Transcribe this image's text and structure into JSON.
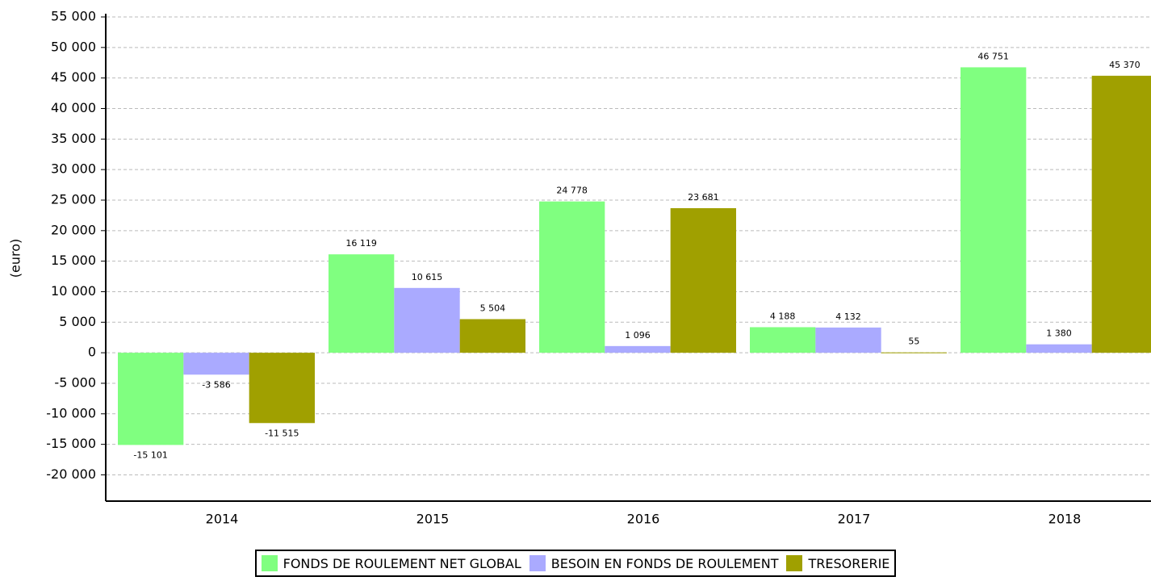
{
  "chart_data": {
    "type": "bar",
    "y_axis_label": "(euro)",
    "categories": [
      "2014",
      "2015",
      "2016",
      "2017",
      "2018"
    ],
    "series": [
      {
        "name": "FONDS DE ROULEMENT NET GLOBAL",
        "color": "#80ff80",
        "values": [
          -15101,
          16119,
          24778,
          4188,
          46751
        ],
        "value_labels": [
          "-15 101",
          "16 119",
          "24 778",
          "4 188",
          "46 751"
        ]
      },
      {
        "name": "BESOIN EN FONDS DE ROULEMENT",
        "color": "#aaaaff",
        "values": [
          -3586,
          10615,
          1096,
          4132,
          1380
        ],
        "value_labels": [
          "-3 586",
          "10 615",
          "1 096",
          "4 132",
          "1 380"
        ]
      },
      {
        "name": "TRESORERIE",
        "color": "#a0a000",
        "values": [
          -11515,
          5504,
          23681,
          55,
          45370
        ],
        "value_labels": [
          "-11 515",
          "5 504",
          "23 681",
          "55",
          "45 370"
        ]
      }
    ],
    "ylim": [
      -24300,
      55000
    ],
    "yticks": [
      {
        "value": -20000,
        "label": "-20 000"
      },
      {
        "value": -15000,
        "label": "-15 000"
      },
      {
        "value": -10000,
        "label": "-10 000"
      },
      {
        "value": -5000,
        "label": "-5 000"
      },
      0,
      {
        "value": 5000,
        "label": "5 000"
      },
      {
        "value": 10000,
        "label": "10 000"
      },
      {
        "value": 15000,
        "label": "15 000"
      },
      {
        "value": 20000,
        "label": "20 000"
      },
      {
        "value": 25000,
        "label": "25 000"
      },
      {
        "value": 30000,
        "label": "30 000"
      },
      {
        "value": 35000,
        "label": "35 000"
      },
      {
        "value": 40000,
        "label": "40 000"
      },
      {
        "value": 45000,
        "label": "45 000"
      },
      {
        "value": 50000,
        "label": "50 000"
      },
      {
        "value": 55000,
        "label": "55 000"
      }
    ],
    "grid": true,
    "legend": "bottom"
  }
}
